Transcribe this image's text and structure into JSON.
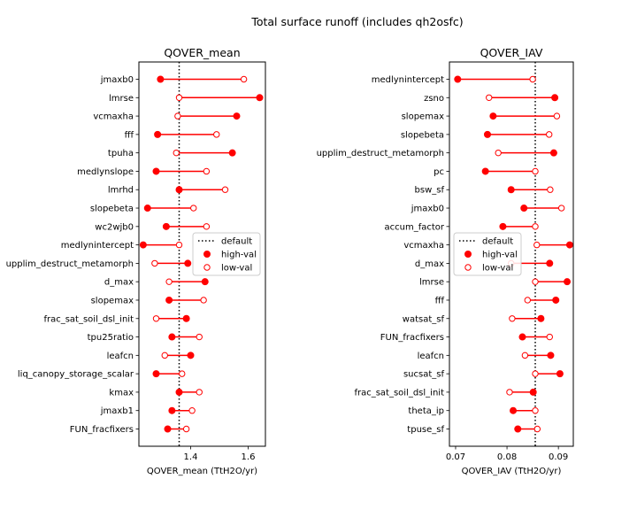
{
  "figure": {
    "suptitle": "Total surface runoff (includes qh2osfc)"
  },
  "colors": {
    "marker": "#ff0000",
    "default_line": "#000000",
    "legend_border": "#cccccc",
    "axes": "#000000"
  },
  "chart_data": [
    {
      "type": "dumbbell",
      "title": "QOVER_mean",
      "xlabel": "QOVER_mean (TtH2O/yr)",
      "ylabel": "",
      "xlim": [
        1.22,
        1.66
      ],
      "xticks": [
        1.4,
        1.6
      ],
      "xtick_labels": [
        "1.4",
        "1.6"
      ],
      "default_value": 1.36,
      "grid": false,
      "legend": {
        "position": "center-right",
        "entries": [
          "default",
          "high-val",
          "low-val"
        ]
      },
      "categories": [
        "jmaxb0",
        "lmrse",
        "vcmaxha",
        "fff",
        "tpuha",
        "medlynslope",
        "lmrhd",
        "slopebeta",
        "wc2wjb0",
        "medlynintercept",
        "upplim_destruct_metamorph",
        "d_max",
        "slopemax",
        "frac_sat_soil_dsl_init",
        "tpu25ratio",
        "leafcn",
        "liq_canopy_storage_scalar",
        "kmax",
        "jmaxb1",
        "FUN_fracfixers"
      ],
      "series": [
        {
          "name": "high-val",
          "values": [
            1.295,
            1.64,
            1.56,
            1.285,
            1.545,
            1.28,
            1.36,
            1.25,
            1.315,
            1.235,
            1.39,
            1.45,
            1.325,
            1.385,
            1.335,
            1.4,
            1.28,
            1.36,
            1.335,
            1.32
          ]
        },
        {
          "name": "low-val",
          "values": [
            1.585,
            1.36,
            1.355,
            1.49,
            1.35,
            1.455,
            1.52,
            1.41,
            1.455,
            1.36,
            1.275,
            1.325,
            1.445,
            1.28,
            1.43,
            1.31,
            1.37,
            1.43,
            1.405,
            1.385
          ]
        }
      ]
    },
    {
      "type": "dumbbell",
      "title": "QOVER_IAV",
      "xlabel": "QOVER_IAV (TtH2O/yr)",
      "ylabel": "",
      "xlim": [
        0.0688,
        0.0929
      ],
      "xticks": [
        0.07,
        0.08,
        0.09
      ],
      "xtick_labels": [
        "0.07",
        "0.08",
        "0.09"
      ],
      "default_value": 0.0855,
      "grid": false,
      "legend": {
        "position": "center-left",
        "entries": [
          "default",
          "high-val",
          "low-val"
        ]
      },
      "categories": [
        "medlynintercept",
        "zsno",
        "slopemax",
        "slopebeta",
        "upplim_destruct_metamorph",
        "pc",
        "bsw_sf",
        "jmaxb0",
        "accum_factor",
        "vcmaxha",
        "d_max",
        "lmrse",
        "fff",
        "watsat_sf",
        "FUN_fracfixers",
        "leafcn",
        "sucsat_sf",
        "frac_sat_soil_dsl_init",
        "theta_ip",
        "tpuse_sf"
      ],
      "series": [
        {
          "name": "high-val",
          "values": [
            0.0704,
            0.0893,
            0.0773,
            0.0762,
            0.0891,
            0.0758,
            0.0808,
            0.0833,
            0.0792,
            0.0922,
            0.0883,
            0.0917,
            0.0895,
            0.0866,
            0.083,
            0.0885,
            0.0903,
            0.0851,
            0.0812,
            0.0821
          ]
        },
        {
          "name": "low-val",
          "values": [
            0.085,
            0.0765,
            0.0897,
            0.0882,
            0.0783,
            0.0855,
            0.0884,
            0.0906,
            0.0855,
            0.0858,
            0.0808,
            0.0855,
            0.084,
            0.081,
            0.0883,
            0.0835,
            0.0855,
            0.0805,
            0.0855,
            0.0859
          ]
        }
      ]
    }
  ]
}
